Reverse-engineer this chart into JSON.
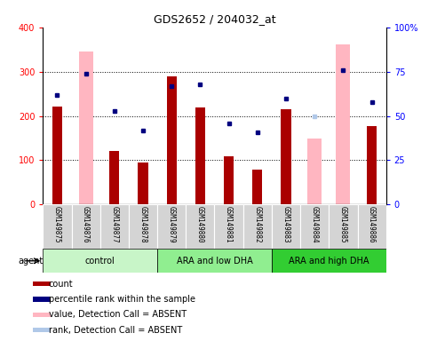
{
  "title": "GDS2652 / 204032_at",
  "categories": [
    "GSM149875",
    "GSM149876",
    "GSM149877",
    "GSM149878",
    "GSM149879",
    "GSM149880",
    "GSM149881",
    "GSM149882",
    "GSM149883",
    "GSM149884",
    "GSM149885",
    "GSM149886"
  ],
  "count_values": [
    222,
    null,
    120,
    95,
    290,
    220,
    108,
    78,
    215,
    null,
    null,
    178
  ],
  "count_absent_values": [
    null,
    345,
    null,
    null,
    null,
    null,
    null,
    null,
    null,
    150,
    362,
    null
  ],
  "percentile_values": [
    62,
    74,
    53,
    42,
    67,
    68,
    46,
    41,
    60,
    null,
    76,
    58
  ],
  "rank_absent_values": [
    null,
    null,
    null,
    null,
    null,
    null,
    null,
    null,
    null,
    50,
    null,
    null
  ],
  "groups": [
    {
      "label": "control",
      "start": 0,
      "end": 3,
      "color": "#c8f5c8"
    },
    {
      "label": "ARA and low DHA",
      "start": 4,
      "end": 7,
      "color": "#90ee90"
    },
    {
      "label": "ARA and high DHA",
      "start": 8,
      "end": 11,
      "color": "#32cd32"
    }
  ],
  "ylim_left": [
    0,
    400
  ],
  "ylim_right": [
    0,
    100
  ],
  "yticks_left": [
    0,
    100,
    200,
    300,
    400
  ],
  "ytick_labels_left": [
    "0",
    "100",
    "200",
    "300",
    "400"
  ],
  "yticks_right": [
    0,
    25,
    50,
    75,
    100
  ],
  "ytick_labels_right": [
    "0",
    "25",
    "50",
    "75",
    "100%"
  ],
  "count_color": "#aa0000",
  "count_absent_color": "#ffb6c1",
  "percentile_color": "#000080",
  "rank_absent_color": "#b0c8e8",
  "bar_width": 0.35,
  "absent_bar_width": 0.5,
  "plot_bg": "#ffffff",
  "xtick_box_color": "#d4d4d4",
  "legend_items": [
    {
      "label": "count",
      "color": "#aa0000"
    },
    {
      "label": "percentile rank within the sample",
      "color": "#000080"
    },
    {
      "label": "value, Detection Call = ABSENT",
      "color": "#ffb6c1"
    },
    {
      "label": "rank, Detection Call = ABSENT",
      "color": "#b0c8e8"
    }
  ],
  "agent_label": "agent"
}
